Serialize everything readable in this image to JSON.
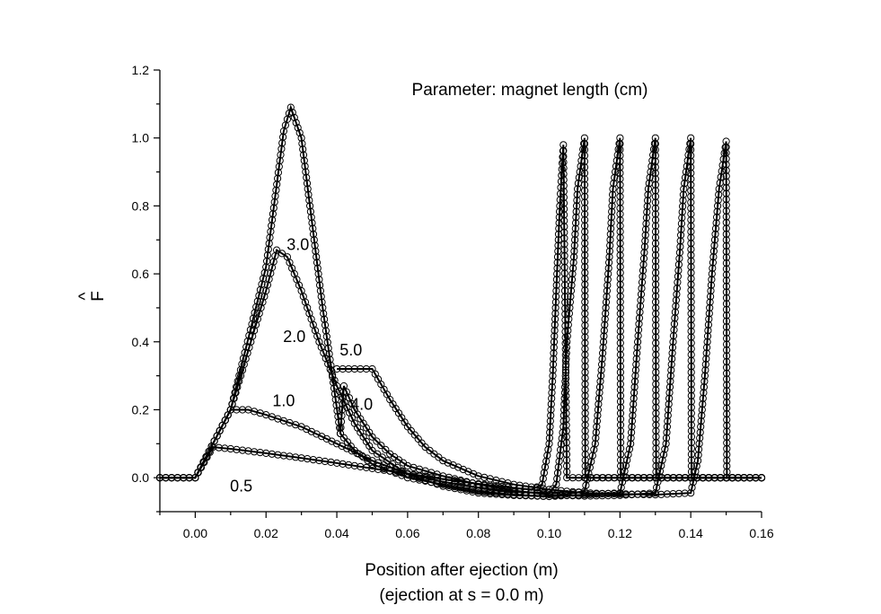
{
  "chart_data": {
    "type": "line",
    "title": "",
    "annotation": "Parameter: magnet length (cm)",
    "xlabel": "Position after ejection (m)",
    "xlabel_line2": "(ejection at s = 0.0 m)",
    "ylabel": "F",
    "ylabel_hat": "^",
    "xlim": [
      -0.01,
      0.16
    ],
    "ylim": [
      -0.1,
      1.2
    ],
    "xticks": [
      0.0,
      0.02,
      0.04,
      0.06,
      0.08,
      0.1,
      0.12,
      0.14,
      0.16
    ],
    "xtick_labels": [
      "0.00",
      "0.02",
      "0.04",
      "0.06",
      "0.08",
      "0.10",
      "0.12",
      "0.14",
      "0.16"
    ],
    "yticks": [
      0.0,
      0.2,
      0.4,
      0.6,
      0.8,
      1.0,
      1.2
    ],
    "ytick_labels": [
      "0.0",
      "0.2",
      "0.4",
      "0.6",
      "0.8",
      "1.0",
      "1.2"
    ],
    "grid": false,
    "style": "solid line with open circle markers",
    "series": [
      {
        "name": "0.5",
        "label_pos": [
          0.013,
          -0.04
        ],
        "points": [
          [
            -0.01,
            0
          ],
          [
            0,
            0
          ],
          [
            0.005,
            0.09
          ],
          [
            0.01,
            0.085
          ],
          [
            0.02,
            0.072
          ],
          [
            0.03,
            0.058
          ],
          [
            0.04,
            0.043
          ],
          [
            0.05,
            0.027
          ],
          [
            0.06,
            0.012
          ],
          [
            0.07,
            -0.004
          ],
          [
            0.08,
            -0.018
          ],
          [
            0.09,
            -0.03
          ],
          [
            0.095,
            -0.035
          ],
          [
            0.098,
            -0.02
          ],
          [
            0.1,
            0.1
          ],
          [
            0.101,
            0.3
          ],
          [
            0.102,
            0.55
          ],
          [
            0.103,
            0.8
          ],
          [
            0.104,
            0.98
          ],
          [
            0.105,
            0
          ],
          [
            0.16,
            0
          ]
        ]
      },
      {
        "name": "1.0",
        "label_pos": [
          0.025,
          0.21
        ],
        "points": [
          [
            -0.01,
            0
          ],
          [
            0,
            0
          ],
          [
            0.01,
            0.2
          ],
          [
            0.015,
            0.2
          ],
          [
            0.02,
            0.185
          ],
          [
            0.03,
            0.15
          ],
          [
            0.04,
            0.1
          ],
          [
            0.05,
            0.05
          ],
          [
            0.06,
            0.012
          ],
          [
            0.07,
            -0.012
          ],
          [
            0.08,
            -0.03
          ],
          [
            0.09,
            -0.042
          ],
          [
            0.1,
            -0.045
          ],
          [
            0.102,
            -0.02
          ],
          [
            0.104,
            0.15
          ],
          [
            0.105,
            0.4
          ],
          [
            0.107,
            0.65
          ],
          [
            0.108,
            0.85
          ],
          [
            0.11,
            1.0
          ],
          [
            0.1102,
            0
          ],
          [
            0.16,
            0
          ]
        ]
      },
      {
        "name": "2.0",
        "label_pos": [
          0.028,
          0.4
        ],
        "points": [
          [
            -0.01,
            0
          ],
          [
            0,
            0
          ],
          [
            0.01,
            0.2
          ],
          [
            0.02,
            0.55
          ],
          [
            0.023,
            0.67
          ],
          [
            0.026,
            0.65
          ],
          [
            0.03,
            0.55
          ],
          [
            0.035,
            0.4
          ],
          [
            0.04,
            0.27
          ],
          [
            0.045,
            0.16
          ],
          [
            0.05,
            0.08
          ],
          [
            0.06,
            0.01
          ],
          [
            0.07,
            -0.025
          ],
          [
            0.08,
            -0.045
          ],
          [
            0.09,
            -0.052
          ],
          [
            0.1,
            -0.055
          ],
          [
            0.11,
            -0.04
          ],
          [
            0.113,
            0.1
          ],
          [
            0.115,
            0.35
          ],
          [
            0.117,
            0.65
          ],
          [
            0.118,
            0.85
          ],
          [
            0.12,
            1.0
          ],
          [
            0.1202,
            0
          ],
          [
            0.16,
            0
          ]
        ]
      },
      {
        "name": "3.0",
        "label_pos": [
          0.029,
          0.67
        ],
        "points": [
          [
            -0.01,
            0
          ],
          [
            0,
            0
          ],
          [
            0.01,
            0.2
          ],
          [
            0.02,
            0.62
          ],
          [
            0.025,
            1.02
          ],
          [
            0.027,
            1.09
          ],
          [
            0.03,
            1.0
          ],
          [
            0.033,
            0.75
          ],
          [
            0.036,
            0.5
          ],
          [
            0.039,
            0.28
          ],
          [
            0.041,
            0.13
          ],
          [
            0.041,
            0.13
          ],
          [
            0.045,
            0.08
          ],
          [
            0.05,
            0.04
          ],
          [
            0.06,
            0.0
          ],
          [
            0.07,
            -0.02
          ],
          [
            0.08,
            -0.04
          ],
          [
            0.09,
            -0.05
          ],
          [
            0.1,
            -0.055
          ],
          [
            0.11,
            -0.05
          ],
          [
            0.12,
            -0.045
          ],
          [
            0.123,
            0.1
          ],
          [
            0.125,
            0.4
          ],
          [
            0.127,
            0.68
          ],
          [
            0.128,
            0.85
          ],
          [
            0.13,
            1.0
          ],
          [
            0.1302,
            0
          ],
          [
            0.16,
            0
          ]
        ]
      },
      {
        "name": "4.0",
        "label_pos": [
          0.047,
          0.2
        ],
        "points": [
          [
            0.041,
            0.13
          ],
          [
            0.042,
            0.27
          ],
          [
            0.045,
            0.2
          ],
          [
            0.05,
            0.12
          ],
          [
            0.055,
            0.07
          ],
          [
            0.06,
            0.035
          ],
          [
            0.07,
            0.005
          ],
          [
            0.08,
            -0.02
          ],
          [
            0.09,
            -0.038
          ],
          [
            0.1,
            -0.05
          ],
          [
            0.11,
            -0.054
          ],
          [
            0.12,
            -0.052
          ],
          [
            0.13,
            -0.045
          ],
          [
            0.133,
            0.1
          ],
          [
            0.135,
            0.4
          ],
          [
            0.137,
            0.68
          ],
          [
            0.138,
            0.85
          ],
          [
            0.14,
            1.0
          ],
          [
            0.1402,
            0
          ],
          [
            0.16,
            0
          ]
        ]
      },
      {
        "name": "5.0",
        "label_pos": [
          0.044,
          0.36
        ],
        "points": [
          [
            0.04,
            0.32
          ],
          [
            0.05,
            0.32
          ],
          [
            0.055,
            0.23
          ],
          [
            0.06,
            0.15
          ],
          [
            0.065,
            0.09
          ],
          [
            0.07,
            0.05
          ],
          [
            0.08,
            0.005
          ],
          [
            0.09,
            -0.02
          ],
          [
            0.1,
            -0.035
          ],
          [
            0.11,
            -0.045
          ],
          [
            0.12,
            -0.048
          ],
          [
            0.13,
            -0.05
          ],
          [
            0.14,
            -0.045
          ],
          [
            0.142,
            0.05
          ],
          [
            0.144,
            0.3
          ],
          [
            0.146,
            0.6
          ],
          [
            0.148,
            0.85
          ],
          [
            0.15,
            0.99
          ],
          [
            0.1502,
            0
          ],
          [
            0.16,
            0
          ]
        ]
      }
    ]
  }
}
